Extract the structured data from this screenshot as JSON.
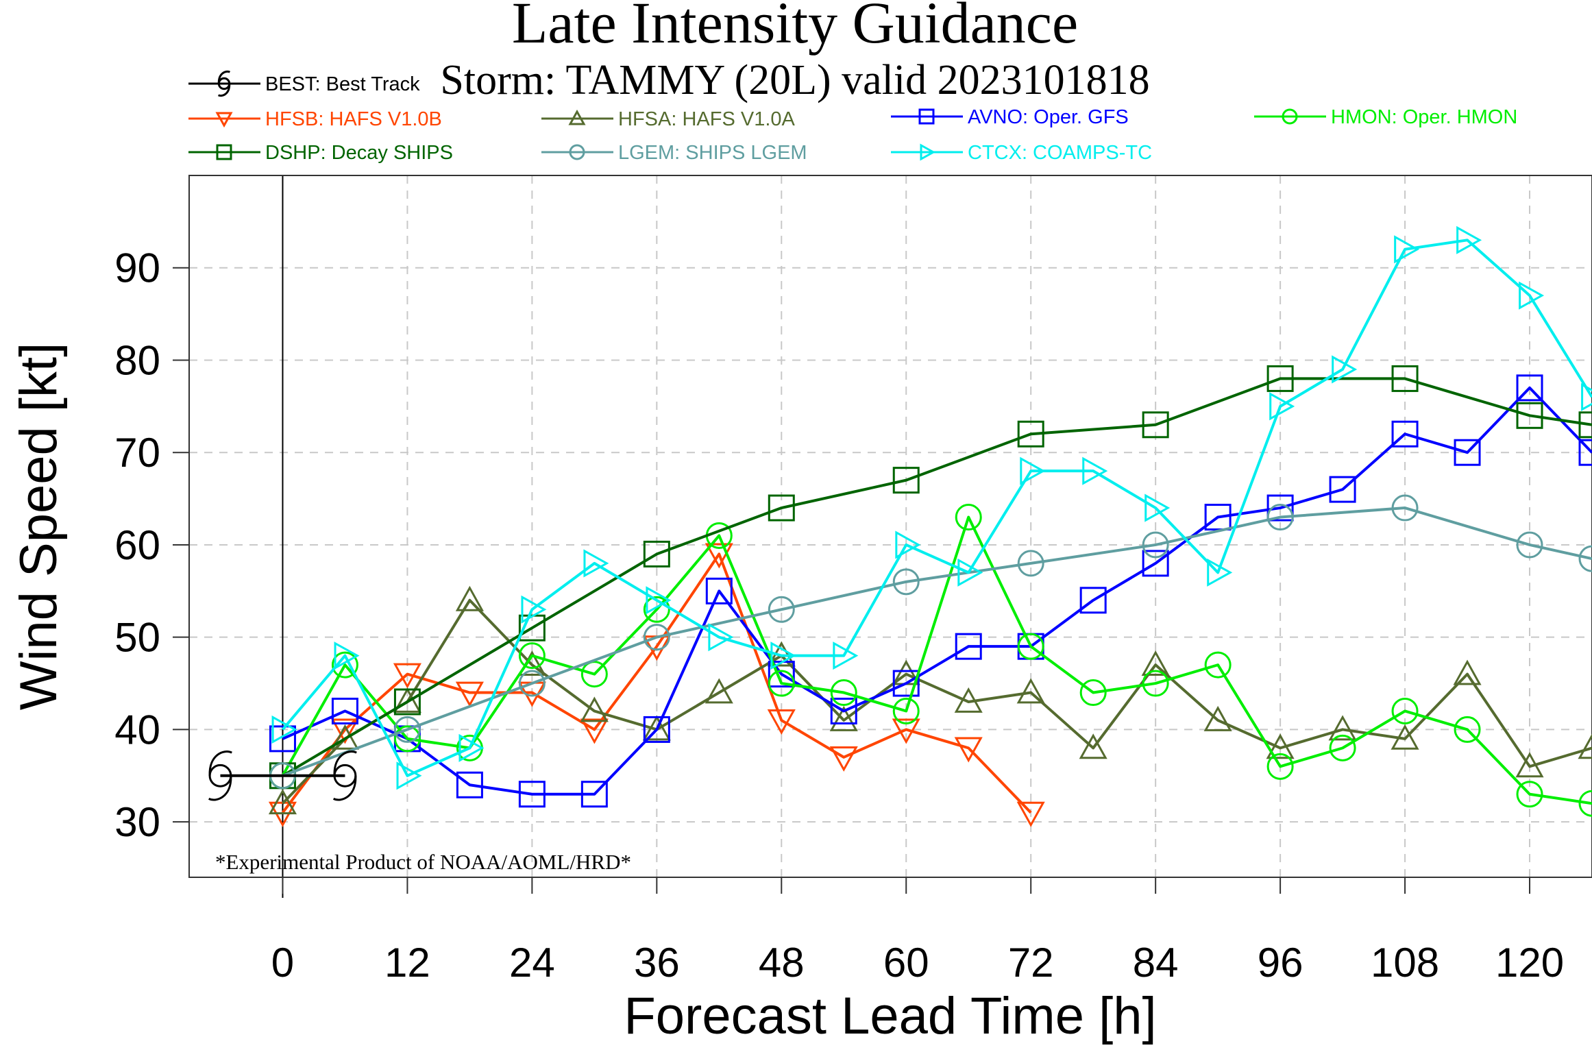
{
  "chart_data": {
    "type": "line",
    "title": "Late Intensity Guidance",
    "subtitle": "Storm: TAMMY (20L) valid 2023101818",
    "xlabel": "Forecast Lead Time [h]",
    "ylabel": "Wind Speed [kt]",
    "xlim": [
      -9,
      126
    ],
    "ylim": [
      24,
      100
    ],
    "xticks": [
      0,
      12,
      24,
      36,
      48,
      60,
      72,
      84,
      96,
      108,
      120
    ],
    "yticks": [
      30,
      40,
      50,
      60,
      70,
      80,
      90
    ],
    "grid": true,
    "legend_position": "top",
    "annotation": "*Experimental Product of NOAA/AOML/HRD*",
    "series": [
      {
        "name": "BEST: Best Track",
        "color": "#000000",
        "marker": "hurricane-symbol",
        "x": [
          -6,
          0,
          6
        ],
        "y": [
          35,
          35,
          35
        ]
      },
      {
        "name": "HFSB: HAFS V1.0B",
        "color": "#ff4500",
        "marker": "triangle-down",
        "x": [
          0,
          6,
          12,
          18,
          24,
          30,
          36,
          42,
          48,
          54,
          60,
          66,
          72
        ],
        "y": [
          31,
          40,
          46,
          44,
          44,
          40,
          49,
          59,
          41,
          37,
          40,
          38,
          31
        ]
      },
      {
        "name": "HFSA: HAFS V1.0A",
        "color": "#556b2f",
        "marker": "triangle-up",
        "x": [
          0,
          6,
          12,
          18,
          24,
          30,
          36,
          42,
          48,
          54,
          60,
          66,
          72,
          78,
          84,
          90,
          96,
          102,
          108,
          114,
          120,
          126
        ],
        "y": [
          32,
          39,
          43,
          54,
          47,
          42,
          40,
          44,
          48,
          41,
          46,
          43,
          44,
          38,
          47,
          41,
          38,
          40,
          39,
          46,
          36,
          38
        ]
      },
      {
        "name": "AVNO: Oper. GFS",
        "color": "#0000ff",
        "marker": "square",
        "x": [
          0,
          6,
          12,
          18,
          24,
          30,
          36,
          42,
          48,
          54,
          60,
          66,
          72,
          78,
          84,
          90,
          96,
          102,
          108,
          114,
          120,
          126
        ],
        "y": [
          39,
          42,
          39,
          34,
          33,
          33,
          40,
          55,
          46,
          42,
          45,
          49,
          49,
          54,
          58,
          63,
          64,
          66,
          72,
          70,
          77,
          70
        ]
      },
      {
        "name": "HMON: Oper. HMON",
        "color": "#00ee00",
        "marker": "circle",
        "x": [
          0,
          6,
          12,
          18,
          24,
          30,
          36,
          42,
          48,
          54,
          60,
          66,
          72,
          78,
          84,
          90,
          96,
          102,
          108,
          114,
          120,
          126
        ],
        "y": [
          35,
          47,
          39,
          38,
          48,
          46,
          53,
          61,
          45,
          44,
          42,
          63,
          49,
          44,
          45,
          47,
          36,
          38,
          42,
          40,
          33,
          32
        ]
      },
      {
        "name": "DSHP: Decay SHIPS",
        "color": "#006400",
        "marker": "square",
        "x": [
          0,
          12,
          24,
          36,
          48,
          60,
          72,
          84,
          96,
          108,
          120,
          126
        ],
        "y": [
          35,
          43,
          51,
          59,
          64,
          67,
          72,
          73,
          78,
          78,
          74,
          73
        ]
      },
      {
        "name": "LGEM: SHIPS LGEM",
        "color": "#5f9ea0",
        "marker": "circle",
        "x": [
          0,
          12,
          24,
          36,
          48,
          60,
          72,
          84,
          96,
          108,
          120,
          126
        ],
        "y": [
          35,
          40,
          45,
          50,
          53,
          56,
          58,
          60,
          63,
          64,
          60,
          58.5
        ]
      },
      {
        "name": "CTCX: COAMPS-TC",
        "color": "#00eeee",
        "marker": "triangle-right",
        "x": [
          0,
          6,
          12,
          18,
          24,
          30,
          36,
          42,
          48,
          54,
          60,
          66,
          72,
          78,
          84,
          90,
          96,
          102,
          108,
          114,
          120,
          126
        ],
        "y": [
          40,
          48,
          35,
          38,
          53,
          58,
          54,
          50,
          48,
          48,
          60,
          57,
          68,
          68,
          64,
          57,
          75,
          79,
          92,
          93,
          87,
          76
        ]
      }
    ]
  }
}
